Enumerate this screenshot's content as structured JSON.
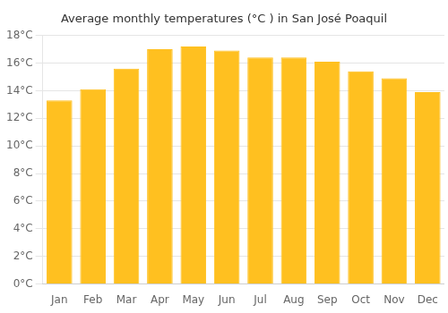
{
  "chart_data": {
    "type": "bar",
    "title": "Average monthly temperatures (°C ) in San José Poaquil",
    "categories": [
      "Jan",
      "Feb",
      "Mar",
      "Apr",
      "May",
      "Jun",
      "Jul",
      "Aug",
      "Sep",
      "Oct",
      "Nov",
      "Dec"
    ],
    "values": [
      13.3,
      14.1,
      15.6,
      17.0,
      17.2,
      16.9,
      16.4,
      16.4,
      16.1,
      15.4,
      14.9,
      13.9
    ],
    "color": "#FFC020",
    "ylim": [
      0,
      18
    ],
    "yticks": [
      {
        "value": 0,
        "label": "0°C"
      },
      {
        "value": 2,
        "label": "2°C"
      },
      {
        "value": 4,
        "label": "4°C"
      },
      {
        "value": 6,
        "label": "6°C"
      },
      {
        "value": 8,
        "label": "8°C"
      },
      {
        "value": 10,
        "label": "10°C"
      },
      {
        "value": 12,
        "label": "12°C"
      },
      {
        "value": 14,
        "label": "14°C"
      },
      {
        "value": 16,
        "label": "16°C"
      },
      {
        "value": 18,
        "label": "18°C"
      }
    ],
    "grid": true
  }
}
